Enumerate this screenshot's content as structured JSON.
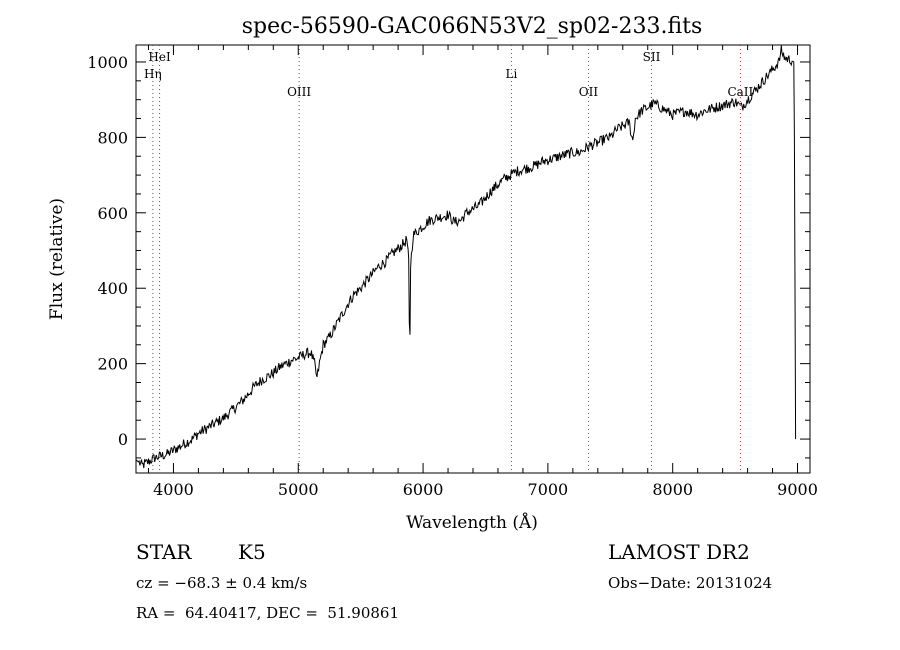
{
  "chart_data": {
    "type": "line",
    "title": "spec-56590-GAC066N53V2_sp02-233.fits",
    "xlabel": "Wavelength (Å)",
    "ylabel": "Flux (relative)",
    "xlim": [
      3700,
      9100
    ],
    "ylim": [
      -90,
      1045
    ],
    "x_ticks": [
      4000,
      5000,
      6000,
      7000,
      8000,
      9000
    ],
    "y_ticks": [
      0,
      200,
      400,
      600,
      800,
      1000
    ],
    "grid": false,
    "line_color": "#000000",
    "series": [
      {
        "points": [
          [
            3700,
            -55
          ],
          [
            3750,
            -70
          ],
          [
            3800,
            -60
          ],
          [
            3850,
            -50
          ],
          [
            3900,
            -45
          ],
          [
            3950,
            -40
          ],
          [
            4000,
            -30
          ],
          [
            4050,
            -20
          ],
          [
            4100,
            -10
          ],
          [
            4150,
            0
          ],
          [
            4200,
            15
          ],
          [
            4250,
            25
          ],
          [
            4300,
            35
          ],
          [
            4350,
            45
          ],
          [
            4400,
            55
          ],
          [
            4450,
            70
          ],
          [
            4500,
            85
          ],
          [
            4550,
            100
          ],
          [
            4600,
            120
          ],
          [
            4650,
            140
          ],
          [
            4700,
            155
          ],
          [
            4750,
            165
          ],
          [
            4800,
            175
          ],
          [
            4850,
            190
          ],
          [
            4900,
            200
          ],
          [
            4950,
            210
          ],
          [
            5000,
            215
          ],
          [
            5050,
            225
          ],
          [
            5100,
            230
          ],
          [
            5130,
            200
          ],
          [
            5150,
            160
          ],
          [
            5170,
            200
          ],
          [
            5200,
            250
          ],
          [
            5250,
            270
          ],
          [
            5300,
            300
          ],
          [
            5350,
            330
          ],
          [
            5400,
            360
          ],
          [
            5450,
            385
          ],
          [
            5500,
            400
          ],
          [
            5550,
            420
          ],
          [
            5600,
            440
          ],
          [
            5650,
            460
          ],
          [
            5700,
            470
          ],
          [
            5750,
            490
          ],
          [
            5800,
            505
          ],
          [
            5850,
            520
          ],
          [
            5870,
            530
          ],
          [
            5885,
            470
          ],
          [
            5890,
            300
          ],
          [
            5895,
            280
          ],
          [
            5900,
            460
          ],
          [
            5920,
            540
          ],
          [
            5950,
            550
          ],
          [
            6000,
            565
          ],
          [
            6050,
            580
          ],
          [
            6100,
            585
          ],
          [
            6150,
            590
          ],
          [
            6200,
            595
          ],
          [
            6250,
            575
          ],
          [
            6300,
            580
          ],
          [
            6350,
            600
          ],
          [
            6400,
            610
          ],
          [
            6450,
            620
          ],
          [
            6500,
            640
          ],
          [
            6550,
            660
          ],
          [
            6600,
            675
          ],
          [
            6650,
            690
          ],
          [
            6700,
            700
          ],
          [
            6750,
            710
          ],
          [
            6800,
            715
          ],
          [
            6850,
            720
          ],
          [
            6900,
            725
          ],
          [
            6950,
            735
          ],
          [
            7000,
            740
          ],
          [
            7050,
            745
          ],
          [
            7100,
            750
          ],
          [
            7150,
            755
          ],
          [
            7200,
            760
          ],
          [
            7250,
            760
          ],
          [
            7300,
            770
          ],
          [
            7350,
            780
          ],
          [
            7400,
            785
          ],
          [
            7450,
            795
          ],
          [
            7500,
            800
          ],
          [
            7550,
            820
          ],
          [
            7600,
            830
          ],
          [
            7650,
            840
          ],
          [
            7680,
            790
          ],
          [
            7700,
            850
          ],
          [
            7750,
            870
          ],
          [
            7800,
            880
          ],
          [
            7850,
            890
          ],
          [
            7900,
            880
          ],
          [
            7950,
            870
          ],
          [
            8000,
            860
          ],
          [
            8050,
            865
          ],
          [
            8100,
            870
          ],
          [
            8150,
            865
          ],
          [
            8200,
            860
          ],
          [
            8250,
            870
          ],
          [
            8300,
            875
          ],
          [
            8350,
            880
          ],
          [
            8400,
            885
          ],
          [
            8450,
            890
          ],
          [
            8500,
            895
          ],
          [
            8550,
            880
          ],
          [
            8600,
            900
          ],
          [
            8650,
            920
          ],
          [
            8700,
            940
          ],
          [
            8750,
            960
          ],
          [
            8800,
            980
          ],
          [
            8850,
            1000
          ],
          [
            8870,
            1030
          ],
          [
            8900,
            1010
          ],
          [
            8950,
            1005
          ],
          [
            8970,
            1000
          ],
          [
            8975,
            800
          ],
          [
            8980,
            400
          ],
          [
            8985,
            0
          ]
        ]
      }
    ],
    "lines": [
      {
        "label": "HeI",
        "x": 3889,
        "color": "#555555",
        "label_row": 0
      },
      {
        "label": "Hη",
        "x": 3835,
        "color": "#555555",
        "label_row": 1
      },
      {
        "label": "OIII",
        "x": 5007,
        "color": "#555555",
        "label_row": 2
      },
      {
        "label": "Li",
        "x": 6708,
        "color": "#cc2222",
        "label_row": 1
      },
      {
        "label": "OII",
        "x": 7325,
        "color": "#555555",
        "label_row": 2
      },
      {
        "label": "SII",
        "x": 7830,
        "color": "#cc2222",
        "label_row": 0
      },
      {
        "label": "CaII",
        "x": 8542,
        "color": "#cc2222",
        "label_row": 2
      }
    ]
  },
  "info": {
    "object_class": "STAR",
    "subclass": "K5",
    "survey": "LAMOST DR2",
    "redshift": "cz = −68.3 ± 0.4 km/s",
    "obs_date": "Obs−Date: 20131024",
    "coords": "RA =  64.40417, DEC =  51.90861"
  }
}
